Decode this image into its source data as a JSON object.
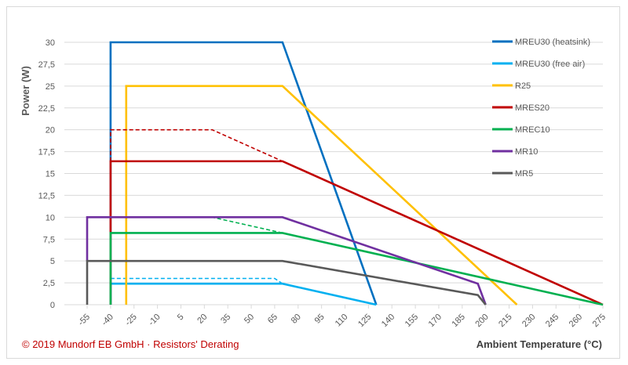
{
  "chart_data": {
    "type": "line",
    "title": "",
    "xlabel": "Ambient Temperature (°C)",
    "ylabel": "Power (W)",
    "xlim": [
      -55,
      275
    ],
    "ylim": [
      0,
      30
    ],
    "grid": true,
    "legend_placement": "right",
    "x_ticks": [
      "-55",
      "-40",
      "-25",
      "-10",
      "5",
      "20",
      "35",
      "50",
      "65",
      "80",
      "95",
      "110",
      "125",
      "140",
      "155",
      "170",
      "185",
      "200",
      "215",
      "230",
      "245",
      "260",
      "275"
    ],
    "y_ticks": [
      "0",
      "2,5",
      "5",
      "7,5",
      "10",
      "12,5",
      "15",
      "17,5",
      "20",
      "22,5",
      "25",
      "27,5",
      "30"
    ],
    "series": [
      {
        "name": "MREU30 (heatsink)",
        "color": "#0070c0",
        "points": [
          [
            -40,
            0
          ],
          [
            -40,
            30
          ],
          [
            70,
            30
          ],
          [
            130,
            0
          ]
        ]
      },
      {
        "name": "MREU30 (free air)",
        "color": "#00b0f0",
        "points": [
          [
            -40,
            0
          ],
          [
            -40,
            2.4
          ],
          [
            70,
            2.4
          ],
          [
            130,
            0
          ]
        ],
        "dashed_points": [
          [
            -40,
            3
          ],
          [
            65,
            3
          ],
          [
            70,
            2.4
          ]
        ]
      },
      {
        "name": "R25",
        "color": "#ffc000",
        "points": [
          [
            -30,
            0
          ],
          [
            -30,
            25
          ],
          [
            70,
            25
          ],
          [
            220,
            0
          ]
        ]
      },
      {
        "name": "MRES20",
        "color": "#c00000",
        "points": [
          [
            -40,
            0
          ],
          [
            -40,
            16.4
          ],
          [
            70,
            16.4
          ],
          [
            275,
            0
          ]
        ],
        "dashed_points": [
          [
            -40,
            16.4
          ],
          [
            -40,
            20
          ],
          [
            25,
            20
          ],
          [
            70,
            16.4
          ]
        ]
      },
      {
        "name": "MREC10",
        "color": "#00b050",
        "points": [
          [
            -40,
            0
          ],
          [
            -40,
            8.2
          ],
          [
            70,
            8.2
          ],
          [
            275,
            0
          ]
        ],
        "dashed_points": [
          [
            -40,
            10
          ],
          [
            25,
            10
          ],
          [
            70,
            8.2
          ]
        ]
      },
      {
        "name": "MR10",
        "color": "#7030a0",
        "points": [
          [
            -55,
            5
          ],
          [
            -55,
            10
          ],
          [
            70,
            10
          ],
          [
            195,
            2.4
          ],
          [
            200,
            0
          ]
        ]
      },
      {
        "name": "MR5",
        "color": "#595959",
        "points": [
          [
            -55,
            0
          ],
          [
            -55,
            5
          ],
          [
            70,
            5
          ],
          [
            195,
            1.1
          ],
          [
            200,
            0
          ]
        ]
      }
    ]
  },
  "footer": {
    "copyright": "© 2019 Mundorf EB GmbH · Resistors' Derating"
  }
}
